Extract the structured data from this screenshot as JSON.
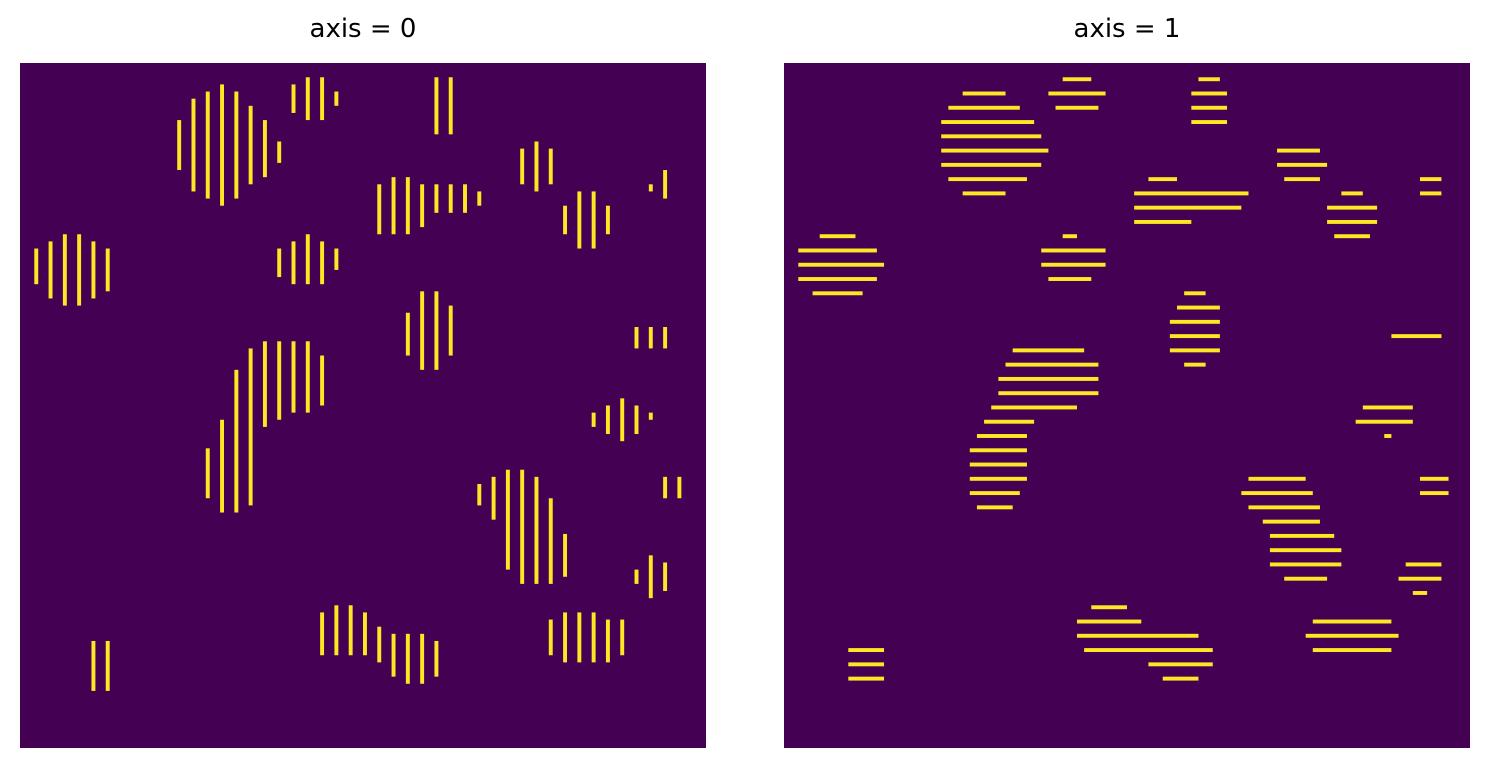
{
  "chart_data": [
    {
      "type": "heatmap",
      "title": "axis = 0",
      "axes": "off",
      "colormap": {
        "background": "#440154",
        "foreground": "#fde725"
      },
      "grid": {
        "rows": 96,
        "cols": 96
      },
      "stripe_orientation": "vertical",
      "blobs": [
        [
          0.08,
          0.3,
          1.6,
          1.3
        ],
        [
          0.12,
          0.88,
          0.7,
          0.9
        ],
        [
          0.29,
          0.12,
          1.6,
          2.2
        ],
        [
          0.31,
          0.6,
          1.1,
          1.6
        ],
        [
          0.35,
          0.13,
          0.6,
          0.6
        ],
        [
          0.39,
          0.46,
          1.9,
          1.4
        ],
        [
          0.42,
          0.29,
          1.2,
          0.9
        ],
        [
          0.43,
          0.05,
          0.9,
          0.8
        ],
        [
          0.47,
          0.83,
          1.2,
          1.0
        ],
        [
          0.55,
          0.21,
          1.1,
          1.1
        ],
        [
          0.58,
          0.87,
          1.1,
          1.0
        ],
        [
          0.6,
          0.39,
          1.0,
          1.4
        ],
        [
          0.62,
          0.06,
          0.8,
          1.1
        ],
        [
          0.64,
          0.2,
          0.9,
          0.5
        ],
        [
          0.72,
          0.63,
          1.3,
          0.9
        ],
        [
          0.75,
          0.15,
          0.9,
          0.8
        ],
        [
          0.76,
          0.72,
          1.3,
          1.1
        ],
        [
          0.83,
          0.23,
          1.0,
          1.0
        ],
        [
          0.83,
          0.84,
          1.7,
          0.9
        ],
        [
          0.88,
          0.52,
          1.1,
          0.7
        ],
        [
          0.92,
          0.4,
          0.9,
          0.5
        ],
        [
          0.93,
          0.75,
          0.8,
          0.7
        ],
        [
          0.94,
          0.18,
          0.5,
          0.5
        ],
        [
          0.95,
          0.62,
          0.6,
          0.5
        ]
      ]
    },
    {
      "type": "heatmap",
      "title": "axis = 1",
      "axes": "off",
      "colormap": {
        "background": "#440154",
        "foreground": "#fde725"
      },
      "grid": {
        "rows": 96,
        "cols": 96
      },
      "stripe_orientation": "horizontal",
      "blobs": [
        [
          0.08,
          0.3,
          1.6,
          1.3
        ],
        [
          0.12,
          0.88,
          0.7,
          0.9
        ],
        [
          0.29,
          0.12,
          1.6,
          2.2
        ],
        [
          0.31,
          0.6,
          1.1,
          1.6
        ],
        [
          0.35,
          0.13,
          0.6,
          0.6
        ],
        [
          0.39,
          0.46,
          1.9,
          1.4
        ],
        [
          0.42,
          0.29,
          1.2,
          0.9
        ],
        [
          0.43,
          0.05,
          0.9,
          0.8
        ],
        [
          0.47,
          0.83,
          1.2,
          1.0
        ],
        [
          0.55,
          0.21,
          1.1,
          1.1
        ],
        [
          0.58,
          0.87,
          1.1,
          1.0
        ],
        [
          0.6,
          0.39,
          1.0,
          1.4
        ],
        [
          0.62,
          0.06,
          0.8,
          1.1
        ],
        [
          0.64,
          0.2,
          0.9,
          0.5
        ],
        [
          0.72,
          0.63,
          1.3,
          0.9
        ],
        [
          0.75,
          0.15,
          0.9,
          0.8
        ],
        [
          0.76,
          0.72,
          1.3,
          1.1
        ],
        [
          0.83,
          0.23,
          1.0,
          1.0
        ],
        [
          0.83,
          0.84,
          1.7,
          0.9
        ],
        [
          0.88,
          0.52,
          1.1,
          0.7
        ],
        [
          0.92,
          0.4,
          0.9,
          0.5
        ],
        [
          0.93,
          0.75,
          0.8,
          0.7
        ],
        [
          0.94,
          0.18,
          0.5,
          0.5
        ],
        [
          0.95,
          0.62,
          0.6,
          0.5
        ]
      ]
    }
  ]
}
